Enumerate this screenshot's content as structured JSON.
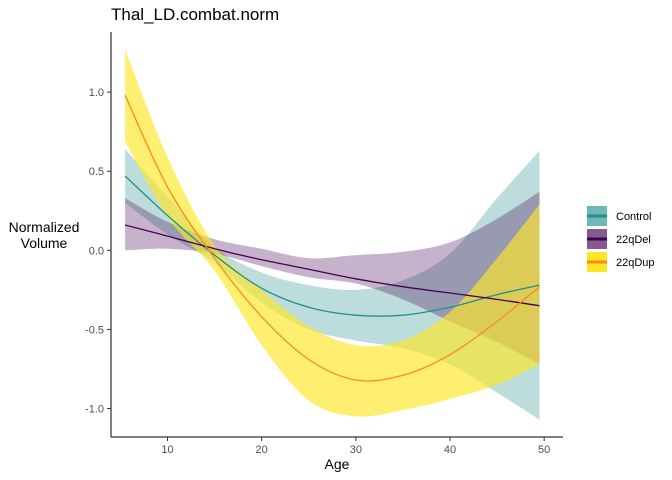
{
  "chart_data": {
    "type": "line",
    "title": "Thal_LD.combat.norm",
    "xlabel": "Age",
    "ylabel_lines": [
      "Normalized",
      "Volume"
    ],
    "xlim": [
      4,
      52
    ],
    "ylim": [
      -1.18,
      1.38
    ],
    "x_ticks": [
      10,
      20,
      30,
      40,
      50
    ],
    "y_ticks": [
      -1.0,
      -0.5,
      0.0,
      0.5,
      1.0
    ],
    "y_tick_labels": [
      "-1.0",
      "-0.5",
      "0.0",
      "0.5",
      "1.0"
    ],
    "x_tick_labels": [
      "10",
      "20",
      "30",
      "40",
      "50"
    ],
    "grid": false,
    "legend_position": "right",
    "series": [
      {
        "name": "Control",
        "line_color": "#21908C",
        "fill_color": "#21908C",
        "fill_opacity": 0.3,
        "x": [
          5.5,
          10,
          15,
          20,
          25,
          30,
          35,
          40,
          45,
          49.5
        ],
        "y": [
          0.47,
          0.22,
          -0.03,
          -0.24,
          -0.36,
          -0.41,
          -0.41,
          -0.36,
          -0.28,
          -0.22
        ],
        "lower": [
          0.3,
          0.1,
          -0.08,
          -0.33,
          -0.5,
          -0.57,
          -0.62,
          -0.72,
          -0.9,
          -1.07
        ],
        "upper": [
          0.64,
          0.34,
          0.02,
          -0.14,
          -0.22,
          -0.25,
          -0.19,
          -0.02,
          0.33,
          0.63
        ]
      },
      {
        "name": "22qDel",
        "line_color": "#440154",
        "fill_color": "#440154",
        "fill_opacity": 0.3,
        "x": [
          5.5,
          10,
          15,
          20,
          25,
          30,
          35,
          40,
          45,
          49.5
        ],
        "y": [
          0.16,
          0.09,
          0.01,
          -0.06,
          -0.12,
          -0.18,
          -0.23,
          -0.27,
          -0.31,
          -0.35
        ],
        "lower": [
          0.0,
          0.01,
          -0.02,
          -0.1,
          -0.17,
          -0.21,
          -0.31,
          -0.45,
          -0.58,
          -0.72
        ],
        "upper": [
          0.33,
          0.18,
          0.07,
          0.01,
          -0.05,
          -0.03,
          -0.01,
          0.05,
          0.2,
          0.37
        ]
      },
      {
        "name": "22qDup",
        "line_color": "#FB8C1B",
        "fill_color": "#FDE725",
        "fill_opacity": 0.65,
        "x": [
          5.5,
          10,
          15,
          20,
          25,
          30,
          35,
          40,
          45,
          49.5
        ],
        "y": [
          0.98,
          0.4,
          -0.05,
          -0.42,
          -0.69,
          -0.82,
          -0.79,
          -0.66,
          -0.45,
          -0.23
        ],
        "lower": [
          0.69,
          0.21,
          -0.13,
          -0.6,
          -0.95,
          -1.05,
          -1.01,
          -0.94,
          -0.85,
          -0.72
        ],
        "upper": [
          1.27,
          0.59,
          0.03,
          -0.25,
          -0.48,
          -0.6,
          -0.57,
          -0.39,
          -0.05,
          0.29
        ]
      }
    ]
  }
}
